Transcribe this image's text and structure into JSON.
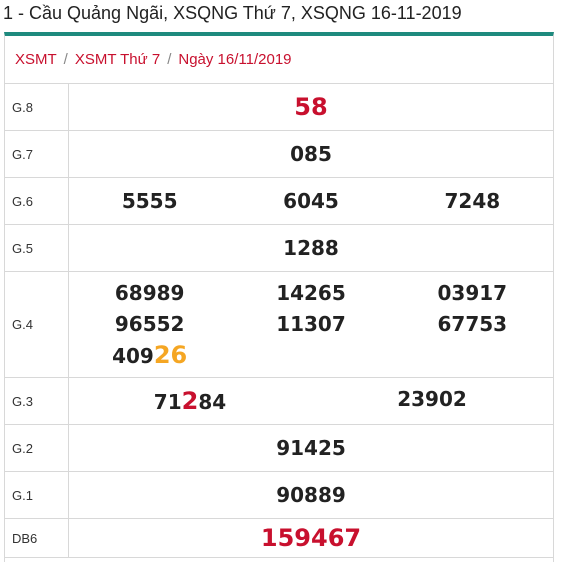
{
  "title": "1 - Cầu Quảng Ngãi, XSQNG Thứ 7, XSQNG 16-11-2019",
  "breadcrumb": [
    {
      "label": "XSMT"
    },
    {
      "label": "XSMT Thứ 7"
    },
    {
      "label": "Ngày 16/11/2019"
    }
  ],
  "prizes": {
    "g8": {
      "label": "G.8",
      "values": [
        "58"
      ]
    },
    "g7": {
      "label": "G.7",
      "values": [
        "085"
      ]
    },
    "g6": {
      "label": "G.6",
      "values": [
        "5555",
        "6045",
        "7248"
      ]
    },
    "g5": {
      "label": "G.5",
      "values": [
        "1288"
      ]
    },
    "g4": {
      "label": "G.4",
      "values": [
        "68989",
        "14265",
        "03917",
        "96552",
        "11307",
        "67753"
      ],
      "last": {
        "prefix": "409",
        "highlight": "26"
      }
    },
    "g3": {
      "label": "G.3",
      "first": {
        "prefix": "71",
        "highlight": "2",
        "suffix": "84"
      },
      "second": "23902"
    },
    "g2": {
      "label": "G.2",
      "values": [
        "91425"
      ]
    },
    "g1": {
      "label": "G.1",
      "values": [
        "90889"
      ]
    },
    "db": {
      "label": "DB6",
      "values": [
        "159467"
      ]
    }
  },
  "colors": {
    "accent_bar": "#1e8a7e",
    "red": "#c8102e",
    "orange": "#f5a623"
  }
}
